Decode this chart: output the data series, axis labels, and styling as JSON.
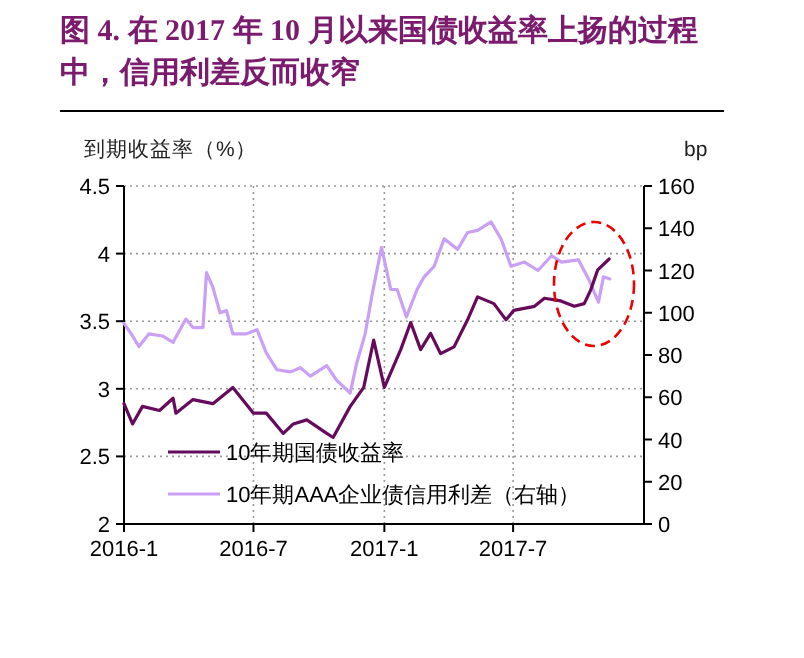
{
  "chart_data": {
    "type": "line",
    "title": "图 4. 在 2017 年 10 月以来国债收益率上扬的过程中，信用利差反而收窄",
    "ylabel": "到期收益率（%）",
    "y2label": "bp",
    "xlim": [
      "2016-01",
      "2018-01"
    ],
    "xticks": [
      {
        "value": "2016-01",
        "label": "2016-1"
      },
      {
        "value": "2016-07",
        "label": "2016-7"
      },
      {
        "value": "2017-01",
        "label": "2017-1"
      },
      {
        "value": "2017-07",
        "label": "2017-7"
      }
    ],
    "ylim": [
      2,
      4.5
    ],
    "yticks": [
      2,
      2.5,
      3,
      3.5,
      4,
      4.5
    ],
    "y2lim": [
      0,
      160
    ],
    "y2ticks": [
      0,
      20,
      40,
      60,
      80,
      100,
      120,
      140,
      160
    ],
    "grid": true,
    "legend": "bottom left",
    "line_style": "solid",
    "series": [
      {
        "name": "10年期国债收益率",
        "color": "#660a5c",
        "x": [
          "2016-01-01",
          "2016-01-13",
          "2016-01-27",
          "2016-02-20",
          "2016-03-10",
          "2016-03-14",
          "2016-04-07",
          "2016-05-05",
          "2016-06-02",
          "2016-07-01",
          "2016-07-19",
          "2016-08-12",
          "2016-08-26",
          "2016-09-14",
          "2016-10-12",
          "2016-10-21",
          "2016-11-14",
          "2016-12-03",
          "2016-12-17",
          "2017-01-01",
          "2017-01-24",
          "2017-02-07",
          "2017-02-21",
          "2017-03-07",
          "2017-03-21",
          "2017-04-09",
          "2017-04-28",
          "2017-05-12",
          "2017-06-04",
          "2017-06-21",
          "2017-07-02",
          "2017-07-31",
          "2017-08-14",
          "2017-09-06",
          "2017-09-25",
          "2017-10-09",
          "2017-10-18",
          "2017-10-28",
          "2017-11-13"
        ],
        "values": [
          2.89,
          2.74,
          2.87,
          2.84,
          2.93,
          2.82,
          2.92,
          2.89,
          3.01,
          2.82,
          2.82,
          2.67,
          2.74,
          2.77,
          2.67,
          2.64,
          2.87,
          3.01,
          3.36,
          3.01,
          3.29,
          3.49,
          3.29,
          3.41,
          3.26,
          3.31,
          3.51,
          3.68,
          3.63,
          3.51,
          3.58,
          3.61,
          3.67,
          3.65,
          3.61,
          3.63,
          3.73,
          3.88,
          3.96
        ]
      },
      {
        "name": "10年期AAA企业债信用利差（右轴）",
        "color": "#c9a0f5",
        "axis": "y2",
        "x": [
          "2016-01-01",
          "2016-01-13",
          "2016-01-22",
          "2016-02-05",
          "2016-02-24",
          "2016-03-10",
          "2016-03-28",
          "2016-04-07",
          "2016-04-21",
          "2016-04-26",
          "2016-05-05",
          "2016-05-15",
          "2016-05-24",
          "2016-06-02",
          "2016-06-21",
          "2016-07-06",
          "2016-07-19",
          "2016-08-03",
          "2016-08-22",
          "2016-09-05",
          "2016-09-19",
          "2016-10-12",
          "2016-10-26",
          "2016-11-14",
          "2016-11-23",
          "2016-12-05",
          "2016-12-15",
          "2016-12-28",
          "2017-01-10",
          "2017-01-19",
          "2017-02-01",
          "2017-02-16",
          "2017-02-26",
          "2017-03-12",
          "2017-03-26",
          "2017-04-14",
          "2017-04-28",
          "2017-05-12",
          "2017-05-31",
          "2017-06-14",
          "2017-06-28",
          "2017-07-17",
          "2017-08-05",
          "2017-08-24",
          "2017-09-07",
          "2017-10-01",
          "2017-10-15",
          "2017-10-29",
          "2017-11-05",
          "2017-11-14"
        ],
        "values": [
          95,
          89,
          84,
          90,
          89,
          86,
          97,
          93,
          93,
          119,
          112,
          100,
          101,
          90,
          90,
          92,
          81,
          73,
          72,
          74,
          70,
          75,
          68,
          62,
          76,
          90,
          109,
          131,
          111,
          111,
          98,
          111,
          117,
          122,
          135,
          130,
          138,
          139,
          143,
          135,
          122,
          124,
          120,
          127,
          124,
          125,
          116,
          105,
          117,
          116
        ]
      }
    ]
  }
}
